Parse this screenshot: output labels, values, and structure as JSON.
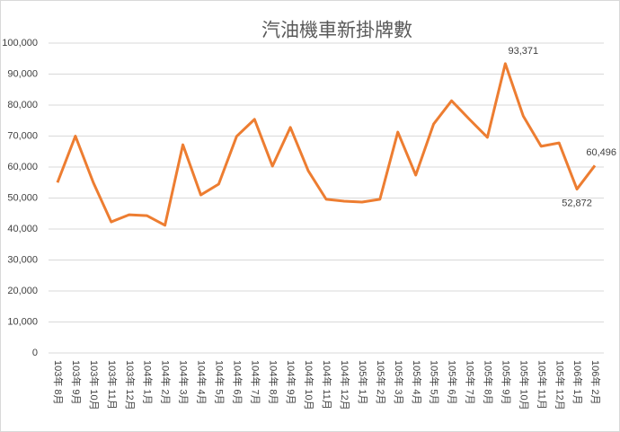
{
  "chart_data": {
    "type": "line",
    "title": "汽油機車新掛牌數",
    "categories": [
      "103年 8月",
      "103年 9月",
      "103年 10月",
      "103年 11月",
      "103年 12月",
      "104年 1月",
      "104年 2月",
      "104年 3月",
      "104年 4月",
      "104年 5月",
      "104年 6月",
      "104年 7月",
      "104年 8月",
      "104年 9月",
      "104年 10月",
      "104年 11月",
      "104年 12月",
      "105年 1月",
      "105年 2月",
      "105年 3月",
      "105年 4月",
      "105年 5月",
      "105年 6月",
      "105年 7月",
      "105年 8月",
      "105年 9月",
      "105年 10月",
      "105年 11月",
      "105年 12月",
      "106年 1月",
      "106年 2月"
    ],
    "series": [
      {
        "name": "汽油機車新掛牌數",
        "color": "#ed7d31",
        "values": [
          55000,
          70000,
          55000,
          42300,
          44600,
          44300,
          41200,
          67200,
          51000,
          54500,
          69900,
          75400,
          60300,
          72800,
          58800,
          49600,
          49000,
          48700,
          49600,
          71300,
          57400,
          73900,
          81400,
          75400,
          69600,
          93371,
          76500,
          66700,
          67800,
          52872,
          60496
        ],
        "value_labels": [
          null,
          null,
          null,
          null,
          null,
          null,
          null,
          null,
          null,
          null,
          null,
          null,
          null,
          null,
          null,
          null,
          null,
          null,
          null,
          null,
          null,
          null,
          null,
          null,
          null,
          "93,371",
          null,
          null,
          null,
          "52,872",
          "60,496"
        ]
      }
    ],
    "ylim": [
      0,
      100000
    ],
    "yticks": [
      0,
      {
        "value": 10000,
        "label": "10,000"
      },
      {
        "value": 20000,
        "label": "20,000"
      },
      {
        "value": 30000,
        "label": "30,000"
      },
      {
        "value": 40000,
        "label": "40,000"
      },
      {
        "value": 50000,
        "label": "50,000"
      },
      {
        "value": 60000,
        "label": "60,000"
      },
      {
        "value": 70000,
        "label": "70,000"
      },
      {
        "value": 80000,
        "label": "80,000"
      },
      {
        "value": 90000,
        "label": "90,000"
      },
      {
        "value": 100000,
        "label": "100,000"
      }
    ],
    "grid": true
  }
}
